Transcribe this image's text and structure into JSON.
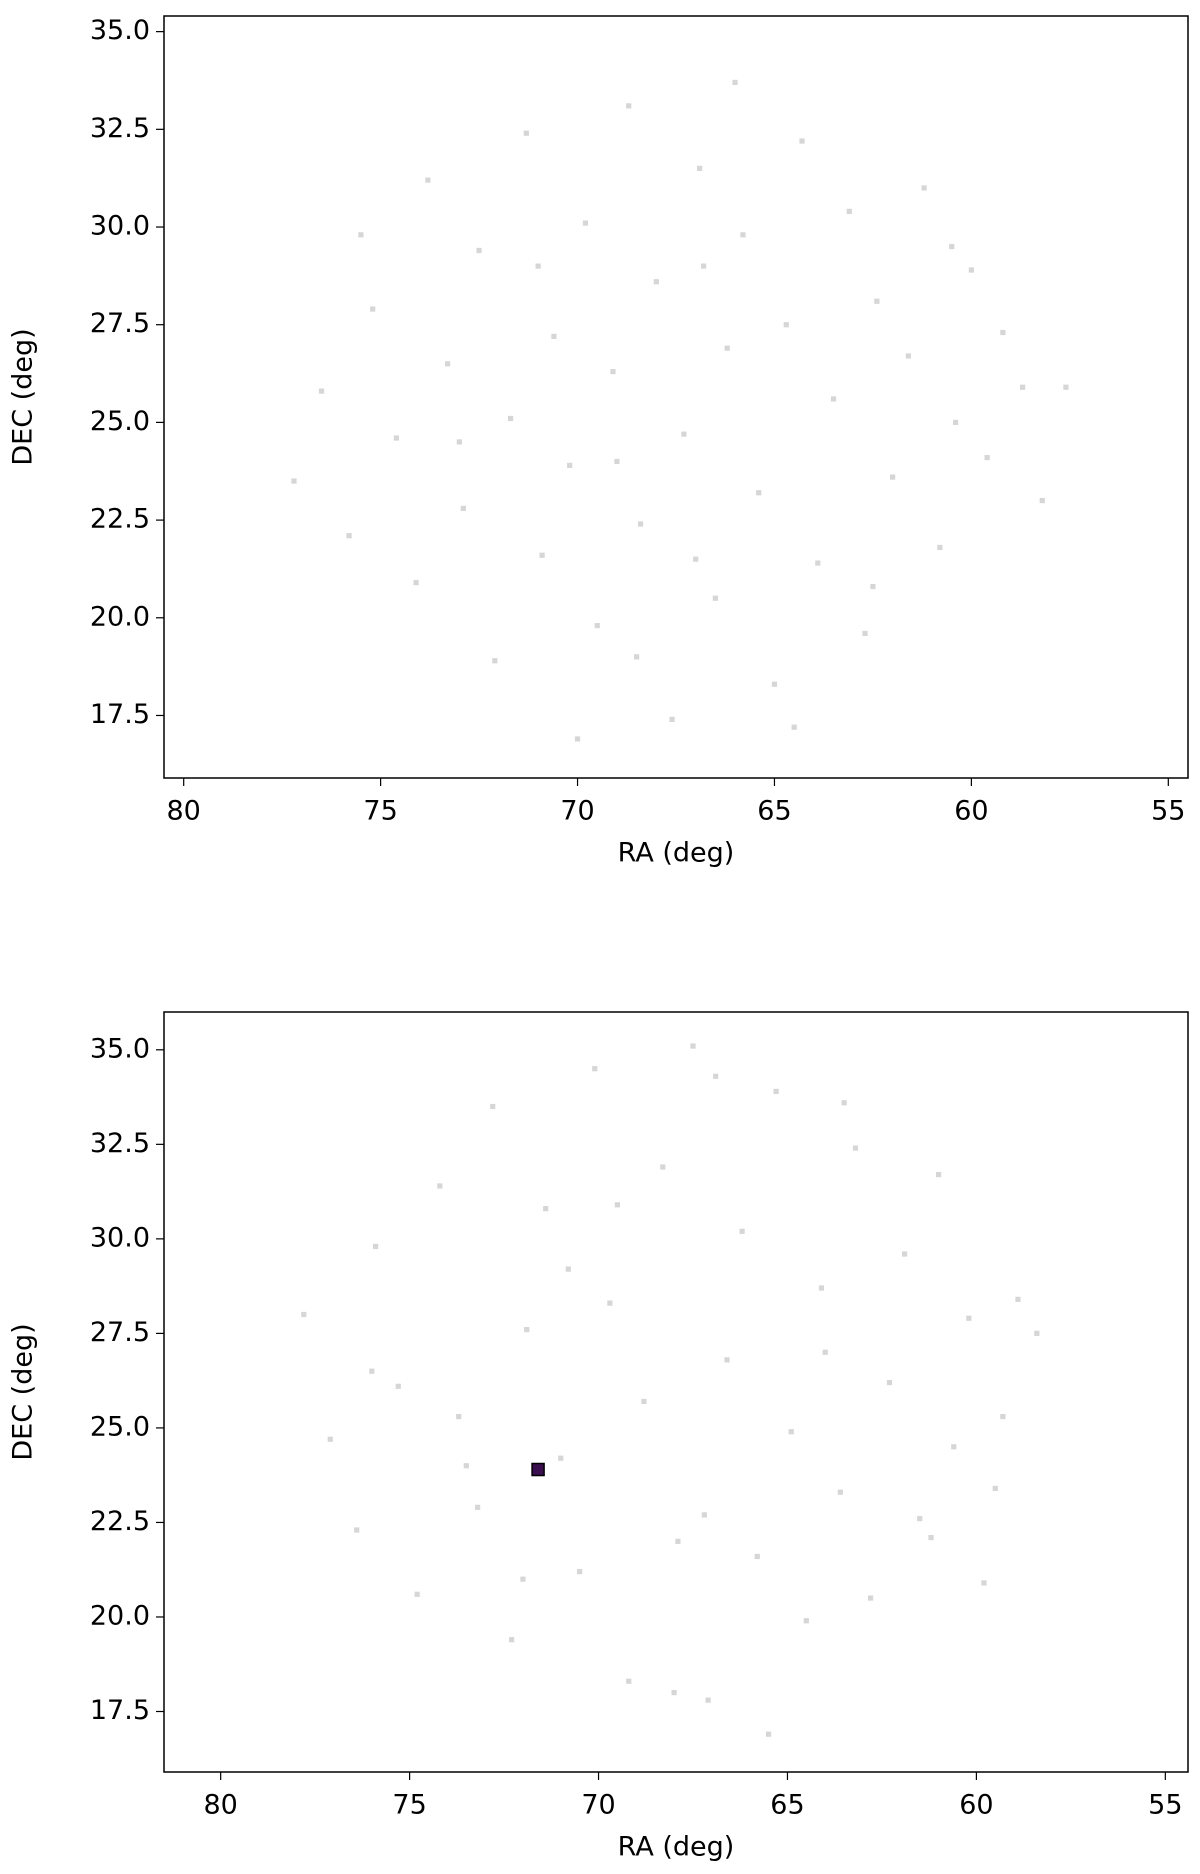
{
  "chart_data": [
    {
      "type": "scatter",
      "xlabel": "RA (deg)",
      "ylabel": "DEC (deg)",
      "xlim": [
        80.5,
        54.5
      ],
      "ylim": [
        15.9,
        35.4
      ],
      "xticks": [
        80,
        75,
        70,
        65,
        60,
        55
      ],
      "yticks": [
        17.5,
        {
          "value": 20,
          "label": "20.0"
        },
        22.5,
        {
          "value": 25,
          "label": "25.0"
        },
        27.5,
        {
          "value": 30,
          "label": "30.0"
        },
        32.5,
        {
          "value": 35,
          "label": "35.0"
        }
      ],
      "series": [
        {
          "color": "#bbbbbb",
          "x": [
            77.2,
            76.5,
            75.8,
            75.2,
            74.6,
            74.1,
            73.8,
            73.3,
            72.9,
            72.5,
            72.1,
            71.7,
            71.3,
            70.9,
            70.6,
            70.2,
            69.8,
            69.5,
            69.1,
            68.7,
            68.4,
            68.0,
            67.6,
            67.3,
            66.9,
            66.5,
            66.2,
            65.8,
            65.4,
            65.0,
            64.7,
            64.3,
            63.9,
            63.5,
            63.1,
            62.7,
            62.4,
            62.0,
            61.6,
            61.2,
            60.8,
            60.4,
            60.0,
            59.6,
            59.2,
            58.7,
            58.2,
            57.6,
            71.0,
            69.0,
            67.0,
            66.0,
            64.5,
            68.5,
            73.0,
            75.5,
            62.5,
            60.5,
            70.0,
            66.8
          ],
          "values": [
            23.5,
            25.8,
            22.1,
            27.9,
            24.6,
            20.9,
            31.2,
            26.5,
            22.8,
            29.4,
            18.9,
            25.1,
            32.4,
            21.6,
            27.2,
            23.9,
            30.1,
            19.8,
            26.3,
            33.1,
            22.4,
            28.6,
            17.4,
            24.7,
            31.5,
            20.5,
            26.9,
            29.8,
            23.2,
            18.3,
            27.5,
            32.2,
            21.4,
            25.6,
            30.4,
            19.6,
            28.1,
            23.6,
            26.7,
            31.0,
            21.8,
            25.0,
            28.9,
            24.1,
            27.3,
            25.9,
            23.0,
            25.9,
            29.0,
            24.0,
            21.5,
            33.7,
            17.2,
            19.0,
            24.5,
            29.8,
            20.8,
            29.5,
            16.9,
            29.0
          ]
        }
      ]
    },
    {
      "type": "scatter",
      "xlabel": "RA (deg)",
      "ylabel": "DEC (deg)",
      "xlim": [
        81.5,
        54.4
      ],
      "ylim": [
        15.9,
        36.0
      ],
      "xticks": [
        80,
        75,
        70,
        65,
        60,
        55
      ],
      "yticks": [
        17.5,
        {
          "value": 20,
          "label": "20.0"
        },
        22.5,
        {
          "value": 25,
          "label": "25.0"
        },
        27.5,
        {
          "value": 30,
          "label": "30.0"
        },
        32.5,
        {
          "value": 35,
          "label": "35.0"
        }
      ],
      "series": [
        {
          "color": "#bbbbbb",
          "x": [
            77.8,
            77.1,
            76.4,
            75.9,
            75.3,
            74.8,
            74.2,
            73.7,
            73.2,
            72.8,
            72.3,
            71.9,
            71.4,
            71.0,
            70.5,
            70.1,
            69.7,
            69.2,
            68.8,
            68.3,
            67.9,
            67.5,
            67.1,
            66.6,
            66.2,
            65.8,
            65.3,
            64.9,
            64.5,
            64.1,
            63.6,
            63.2,
            62.8,
            62.3,
            61.9,
            61.5,
            61.0,
            60.6,
            60.2,
            59.8,
            59.3,
            58.9,
            58.4,
            68.0,
            66.9,
            63.5,
            70.8,
            73.5,
            61.2,
            65.5,
            69.5,
            72.0,
            59.5,
            76.0,
            67.2,
            64.0
          ],
          "values": [
            28.0,
            24.7,
            22.3,
            29.8,
            26.1,
            20.6,
            31.4,
            25.3,
            22.9,
            33.5,
            19.4,
            27.6,
            30.8,
            24.2,
            21.2,
            34.5,
            28.3,
            18.3,
            25.7,
            31.9,
            22.0,
            35.1,
            17.8,
            26.8,
            30.2,
            21.6,
            33.9,
            24.9,
            19.9,
            28.7,
            23.3,
            32.4,
            20.5,
            26.2,
            29.6,
            22.6,
            31.7,
            24.5,
            27.9,
            20.9,
            25.3,
            28.4,
            27.5,
            18.0,
            34.3,
            33.6,
            29.2,
            24.0,
            22.1,
            16.9,
            30.9,
            21.0,
            23.4,
            26.5,
            22.7,
            27.0
          ]
        },
        {
          "color": "#3b0f4f",
          "x": [
            71.6
          ],
          "values": [
            23.9
          ]
        }
      ]
    }
  ]
}
